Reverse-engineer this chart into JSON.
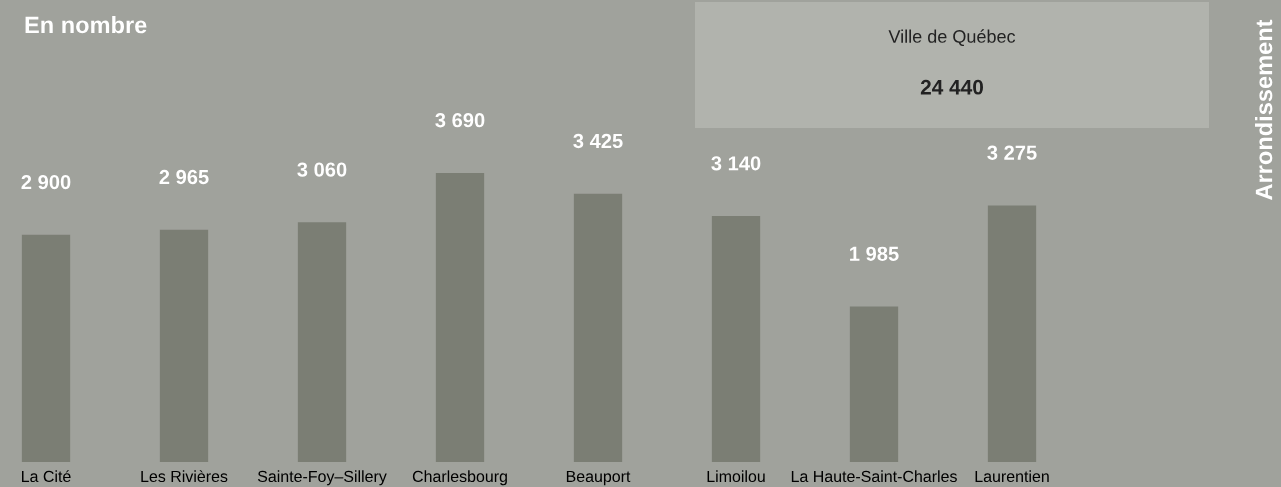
{
  "chart_data": {
    "type": "bar",
    "title": "En nombre",
    "categories": [
      "La Cité",
      "Les Rivières",
      "Sainte-Foy–Sillery",
      "Charlesbourg",
      "Beauport",
      "Limoilou",
      "La Haute-Saint-Charles",
      "Laurentien"
    ],
    "values": [
      2900,
      2965,
      3060,
      3690,
      3425,
      3140,
      1985,
      3275
    ],
    "value_labels": [
      "2 900",
      "2 965",
      "3 060",
      "3 690",
      "3 425",
      "3 140",
      "1 985",
      "3 275"
    ],
    "color": "#7b7e74",
    "grid": false,
    "legend": false,
    "annotations": [
      "Ville de Québec",
      "24 440",
      "Arrondissement"
    ]
  }
}
